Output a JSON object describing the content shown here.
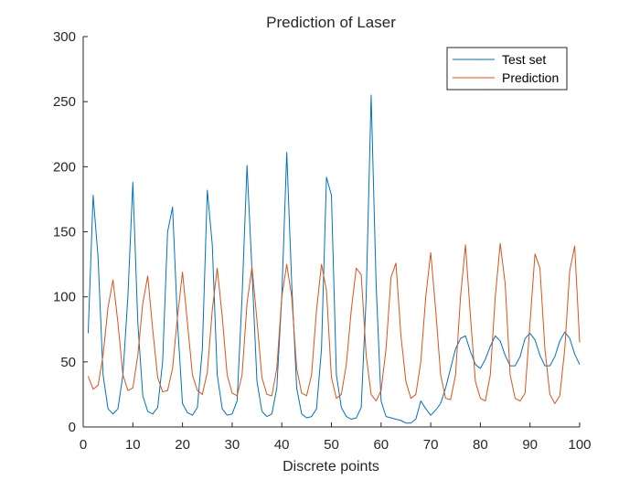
{
  "chart_data": {
    "type": "line",
    "title": "Prediction of Laser",
    "xlabel": "Discrete points",
    "ylabel": "",
    "xlim": [
      0,
      100
    ],
    "ylim": [
      0,
      300
    ],
    "xticks": [
      0,
      10,
      20,
      30,
      40,
      50,
      60,
      70,
      80,
      90,
      100
    ],
    "yticks": [
      0,
      50,
      100,
      150,
      200,
      250,
      300
    ],
    "grid": false,
    "legend_position": "top-right",
    "series": [
      {
        "name": "Test set",
        "color": "#0072BD",
        "x": [
          1,
          2,
          3,
          4,
          5,
          6,
          7,
          8,
          9,
          10,
          11,
          12,
          13,
          14,
          15,
          16,
          17,
          18,
          19,
          20,
          21,
          22,
          23,
          24,
          25,
          26,
          27,
          28,
          29,
          30,
          31,
          32,
          33,
          34,
          35,
          36,
          37,
          38,
          39,
          40,
          41,
          42,
          43,
          44,
          45,
          46,
          47,
          48,
          49,
          50,
          51,
          52,
          53,
          54,
          55,
          56,
          57,
          58,
          59,
          60,
          61,
          62,
          63,
          64,
          65,
          66,
          67,
          68,
          69,
          70,
          71,
          72,
          73,
          74,
          75,
          76,
          77,
          78,
          79,
          80,
          81,
          82,
          83,
          84,
          85,
          86,
          87,
          88,
          89,
          90,
          91,
          92,
          93,
          94,
          95,
          96,
          97,
          98,
          99,
          100
        ],
        "values": [
          72,
          178,
          130,
          40,
          14,
          10,
          14,
          40,
          100,
          188,
          80,
          24,
          12,
          10,
          15,
          50,
          150,
          169,
          80,
          18,
          11,
          9,
          15,
          60,
          182,
          140,
          40,
          14,
          9,
          10,
          20,
          100,
          201,
          120,
          35,
          12,
          8,
          10,
          30,
          100,
          211,
          110,
          30,
          10,
          7,
          8,
          14,
          60,
          192,
          178,
          40,
          15,
          8,
          6,
          7,
          15,
          100,
          255,
          110,
          20,
          8,
          7,
          6,
          5,
          3,
          3,
          6,
          20,
          14,
          9,
          13,
          18,
          30,
          45,
          60,
          68,
          70,
          58,
          48,
          45,
          52,
          62,
          70,
          66,
          55,
          47,
          47,
          54,
          68,
          72,
          67,
          55,
          47,
          47,
          54,
          66,
          73,
          68,
          56,
          48
        ]
      },
      {
        "name": "Prediction",
        "color": "#D95319",
        "x": [
          1,
          2,
          3,
          4,
          5,
          6,
          7,
          8,
          9,
          10,
          11,
          12,
          13,
          14,
          15,
          16,
          17,
          18,
          19,
          20,
          21,
          22,
          23,
          24,
          25,
          26,
          27,
          28,
          29,
          30,
          31,
          32,
          33,
          34,
          35,
          36,
          37,
          38,
          39,
          40,
          41,
          42,
          43,
          44,
          45,
          46,
          47,
          48,
          49,
          50,
          51,
          52,
          53,
          54,
          55,
          56,
          57,
          58,
          59,
          60,
          61,
          62,
          63,
          64,
          65,
          66,
          67,
          68,
          69,
          70,
          71,
          72,
          73,
          74,
          75,
          76,
          77,
          78,
          79,
          80,
          81,
          82,
          83,
          84,
          85,
          86,
          87,
          88,
          89,
          90,
          91,
          92,
          93,
          94,
          95,
          96,
          97,
          98,
          99,
          100
        ],
        "values": [
          39,
          29,
          32,
          55,
          92,
          113,
          80,
          40,
          28,
          30,
          55,
          95,
          116,
          75,
          38,
          27,
          28,
          45,
          85,
          119,
          80,
          40,
          28,
          25,
          42,
          90,
          122,
          85,
          40,
          26,
          24,
          40,
          95,
          123,
          82,
          38,
          25,
          24,
          45,
          100,
          125,
          100,
          45,
          26,
          24,
          40,
          90,
          125,
          105,
          38,
          22,
          25,
          48,
          90,
          122,
          117,
          55,
          25,
          20,
          28,
          60,
          115,
          126,
          70,
          35,
          22,
          25,
          50,
          100,
          134,
          90,
          40,
          22,
          21,
          40,
          100,
          140,
          85,
          35,
          22,
          20,
          40,
          100,
          141,
          110,
          40,
          22,
          20,
          26,
          80,
          133,
          122,
          60,
          25,
          18,
          24,
          60,
          120,
          139,
          65
        ]
      }
    ]
  }
}
